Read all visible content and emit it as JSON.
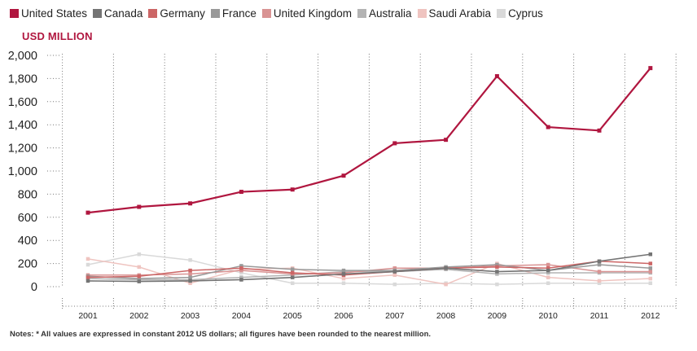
{
  "unit_label": "USD MILLION",
  "notes": "Notes: * All values are expressed in constant 2012 US dollars; all figures have been rounded to the nearest million.",
  "chart_data": {
    "type": "line",
    "x": [
      "2001",
      "2002",
      "2003",
      "2004",
      "2005",
      "2006",
      "2007",
      "2008",
      "2009",
      "2010",
      "2011",
      "2012"
    ],
    "ylim": [
      0,
      2000
    ],
    "yticks": [
      0,
      200,
      400,
      600,
      800,
      "1,000",
      "1,200",
      "1,400",
      "1,600",
      "1,800",
      "2,000"
    ],
    "ytick_values": [
      0,
      200,
      400,
      600,
      800,
      1000,
      1200,
      1400,
      1600,
      1800,
      2000
    ],
    "grid": "vertical dotted",
    "legend": "top",
    "series": [
      {
        "name": "United States",
        "color": "#b0163f",
        "width": 2.2,
        "values": [
          640,
          690,
          720,
          820,
          840,
          960,
          1240,
          1270,
          1820,
          1380,
          1350,
          1890
        ]
      },
      {
        "name": "Canada",
        "color": "#747474",
        "width": 1.6,
        "values": [
          50,
          45,
          50,
          60,
          80,
          110,
          130,
          160,
          130,
          140,
          220,
          280
        ]
      },
      {
        "name": "Germany",
        "color": "#cc6666",
        "width": 1.5,
        "values": [
          80,
          90,
          140,
          160,
          120,
          100,
          130,
          160,
          170,
          160,
          220,
          200
        ]
      },
      {
        "name": "France",
        "color": "#999999",
        "width": 1.5,
        "values": [
          90,
          70,
          80,
          180,
          150,
          140,
          140,
          170,
          190,
          140,
          190,
          160
        ]
      },
      {
        "name": "United Kingdom",
        "color": "#d99393",
        "width": 1.5,
        "values": [
          100,
          100,
          110,
          140,
          110,
          120,
          160,
          160,
          180,
          190,
          130,
          130
        ]
      },
      {
        "name": "Australia",
        "color": "#b3b3b3",
        "width": 1.5,
        "values": [
          70,
          60,
          60,
          80,
          100,
          130,
          130,
          150,
          110,
          120,
          120,
          120
        ]
      },
      {
        "name": "Saudi Arabia",
        "color": "#efc4c0",
        "width": 1.5,
        "values": [
          240,
          170,
          30,
          150,
          160,
          70,
          100,
          20,
          200,
          80,
          50,
          70
        ]
      },
      {
        "name": "Cyprus",
        "color": "#d9d9d9",
        "width": 1.5,
        "values": [
          190,
          280,
          230,
          120,
          30,
          30,
          20,
          30,
          20,
          30,
          30,
          30
        ]
      }
    ]
  }
}
